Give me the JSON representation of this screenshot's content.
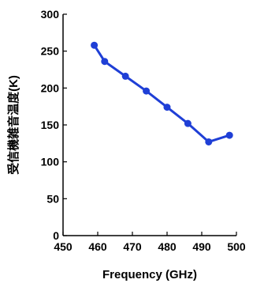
{
  "chart_data": {
    "type": "line",
    "title": "",
    "xlabel": "Frequency (GHz)",
    "ylabel": "受信機雑音温度(K)",
    "xlim": [
      450,
      500
    ],
    "ylim": [
      0,
      300
    ],
    "xticks": [
      450,
      460,
      470,
      480,
      490,
      500
    ],
    "yticks": [
      0,
      50,
      100,
      150,
      200,
      250,
      300
    ],
    "x_tick_labels": [
      "450",
      "460",
      "470",
      "480",
      "490",
      "500"
    ],
    "y_tick_labels": [
      "0",
      "50",
      "100",
      "150",
      "200",
      "250",
      "300"
    ],
    "grid": false,
    "legend": "none",
    "series": [
      {
        "color": "#1f3fd6",
        "marker": "circle",
        "x": [
          459,
          462,
          468,
          474,
          480,
          486,
          492,
          498
        ],
        "y": [
          258,
          236,
          216,
          196,
          174,
          152,
          127,
          136
        ]
      }
    ]
  }
}
